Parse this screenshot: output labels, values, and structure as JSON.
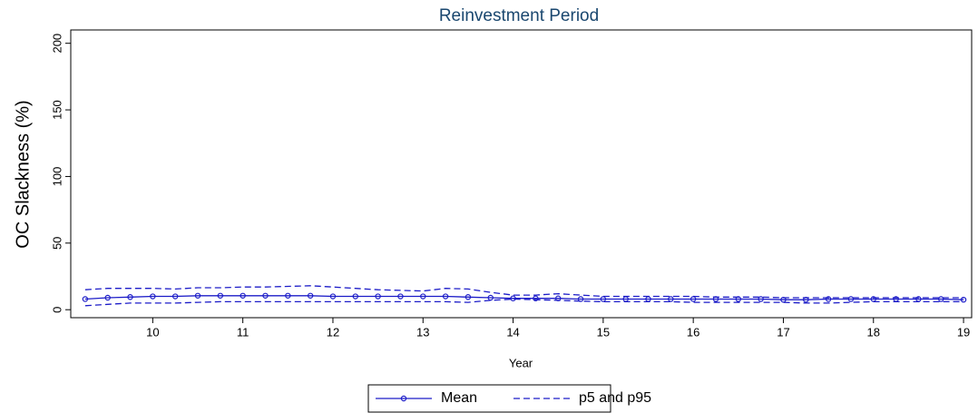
{
  "chart_data": {
    "type": "line",
    "title": "Reinvestment Period",
    "x_label": "Year",
    "y_label": "OC Slackness (%)",
    "x": [
      9.25,
      9.5,
      9.75,
      10,
      10.25,
      10.5,
      10.75,
      11,
      11.25,
      11.5,
      11.75,
      12,
      12.25,
      12.5,
      12.75,
      13,
      13.25,
      13.5,
      13.75,
      14,
      14.25,
      14.5,
      14.75,
      15,
      15.25,
      15.5,
      15.75,
      16,
      16.25,
      16.5,
      16.75,
      17,
      17.25,
      17.5,
      17.75,
      18,
      18.25,
      18.5,
      18.75,
      19
    ],
    "series": [
      {
        "name": "Mean",
        "color": "#1c1cc8",
        "style": "solid",
        "markers": true,
        "values": [
          8,
          9,
          9.5,
          10,
          10,
          10.5,
          10.5,
          10.5,
          10.5,
          10.5,
          10.5,
          10,
          10,
          10,
          10,
          10,
          10,
          9.5,
          9,
          8.5,
          8.5,
          8.5,
          8,
          8,
          8,
          8,
          8,
          8,
          8,
          8,
          8,
          7.5,
          7.5,
          8,
          8,
          8,
          8,
          8,
          8,
          7.5
        ]
      },
      {
        "name": "p5 and p95",
        "color": "#1c1cc8",
        "style": "dashed",
        "markers": false,
        "values": [
          15,
          16,
          16,
          16,
          15.5,
          16.5,
          16.5,
          17,
          17,
          17.5,
          18,
          17,
          16,
          15,
          14.5,
          14,
          16,
          15.5,
          13,
          11,
          11,
          12,
          11,
          10,
          10,
          10,
          10,
          10,
          9.5,
          9.5,
          9.5,
          9,
          9,
          9,
          9,
          9,
          9,
          9,
          9,
          9
        ],
        "values_low": [
          3,
          4,
          5,
          5,
          5,
          5.5,
          6,
          6,
          6,
          6,
          6,
          6,
          6,
          6,
          6,
          6,
          6,
          5.5,
          7,
          8,
          7.5,
          7,
          6.5,
          6,
          6,
          6,
          6,
          5.5,
          5.5,
          5.5,
          5.5,
          5.5,
          5,
          5,
          5.5,
          6,
          6,
          6,
          6,
          6
        ]
      }
    ],
    "xlim": [
      9.09,
      19.09
    ],
    "ylim": [
      -6,
      210
    ],
    "xticks": [
      10,
      11,
      12,
      13,
      14,
      15,
      16,
      17,
      18,
      19
    ],
    "yticks": [
      0,
      50,
      100,
      150,
      200
    ]
  }
}
